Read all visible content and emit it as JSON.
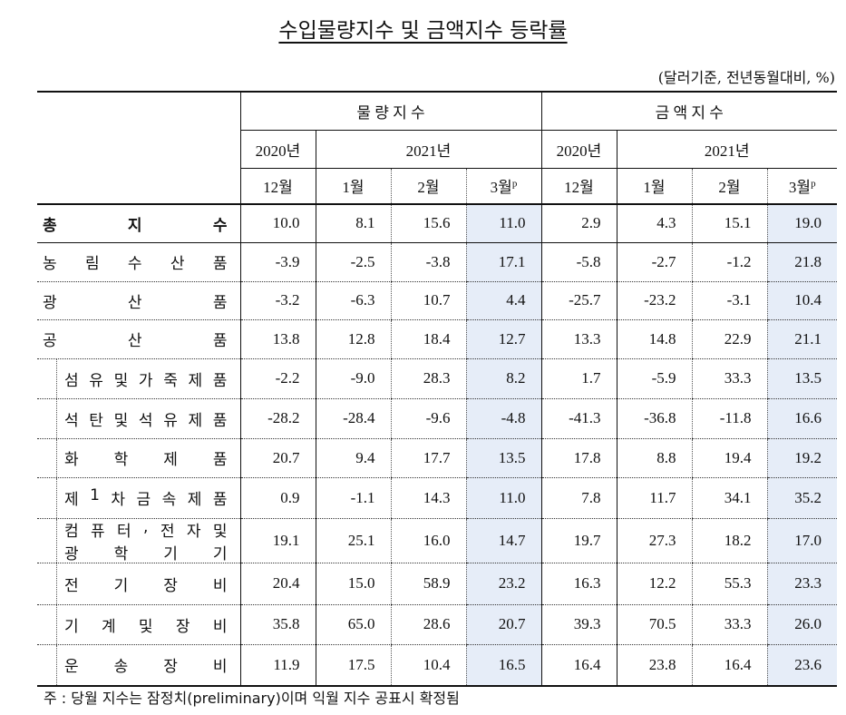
{
  "title": "수입물량지수 및 금액지수 등락률",
  "unit": "(달러기준, 전년동월대비, %)",
  "header": {
    "group1": "물 량 지 수",
    "group2": "금 액 지 수",
    "year2020": "2020년",
    "year2021": "2021년",
    "months": [
      "12월",
      "1월",
      "2월",
      "3월",
      "12월",
      "1월",
      "2월",
      "3월"
    ],
    "prelim_mark": "p"
  },
  "rows": [
    {
      "label": [
        "총지수"
      ],
      "values": [
        "10.0",
        "8.1",
        "15.6",
        "11.0",
        "2.9",
        "4.3",
        "15.1",
        "19.0"
      ]
    },
    {
      "label": [
        "농림수산품"
      ],
      "values": [
        "-3.9",
        "-2.5",
        "-3.8",
        "17.1",
        "-5.8",
        "-2.7",
        "-1.2",
        "21.8"
      ]
    },
    {
      "label": [
        "광산품"
      ],
      "values": [
        "-3.2",
        "-6.3",
        "10.7",
        "4.4",
        "-25.7",
        "-23.2",
        "-3.1",
        "10.4"
      ]
    },
    {
      "label": [
        "공산품"
      ],
      "values": [
        "13.8",
        "12.8",
        "18.4",
        "12.7",
        "13.3",
        "14.8",
        "22.9",
        "21.1"
      ]
    },
    {
      "label": [
        "섬유및가죽제품"
      ],
      "sub": true,
      "values": [
        "-2.2",
        "-9.0",
        "28.3",
        "8.2",
        "1.7",
        "-5.9",
        "33.3",
        "13.5"
      ]
    },
    {
      "label": [
        "석탄및석유제품"
      ],
      "sub": true,
      "values": [
        "-28.2",
        "-28.4",
        "-9.6",
        "-4.8",
        "-41.3",
        "-36.8",
        "-11.8",
        "16.6"
      ]
    },
    {
      "label": [
        "화학제품"
      ],
      "sub": true,
      "values": [
        "20.7",
        "9.4",
        "17.7",
        "13.5",
        "17.8",
        "8.8",
        "19.4",
        "19.2"
      ]
    },
    {
      "label": [
        "제1차금속제품"
      ],
      "sub": true,
      "values": [
        "0.9",
        "-1.1",
        "14.3",
        "11.0",
        "7.8",
        "11.7",
        "34.1",
        "35.2"
      ]
    },
    {
      "label": [
        "컴퓨터,전자및",
        "광학기기"
      ],
      "sub": true,
      "values": [
        "19.1",
        "25.1",
        "16.0",
        "14.7",
        "19.7",
        "27.3",
        "18.2",
        "17.0"
      ]
    },
    {
      "label": [
        "전기장비"
      ],
      "sub": true,
      "values": [
        "20.4",
        "15.0",
        "58.9",
        "23.2",
        "16.3",
        "12.2",
        "55.3",
        "23.3"
      ]
    },
    {
      "label": [
        "기계및장비"
      ],
      "sub": true,
      "values": [
        "35.8",
        "65.0",
        "28.6",
        "20.7",
        "39.3",
        "70.5",
        "33.3",
        "26.0"
      ]
    },
    {
      "label": [
        "운송장비"
      ],
      "sub": true,
      "values": [
        "11.9",
        "17.5",
        "10.4",
        "16.5",
        "16.4",
        "23.8",
        "16.4",
        "23.6"
      ]
    }
  ],
  "note": "주 : 당월 지수는 잠정치(preliminary)이며 익월 지수 공표시 확정됨",
  "colors": {
    "highlight": "#e6edf8"
  }
}
